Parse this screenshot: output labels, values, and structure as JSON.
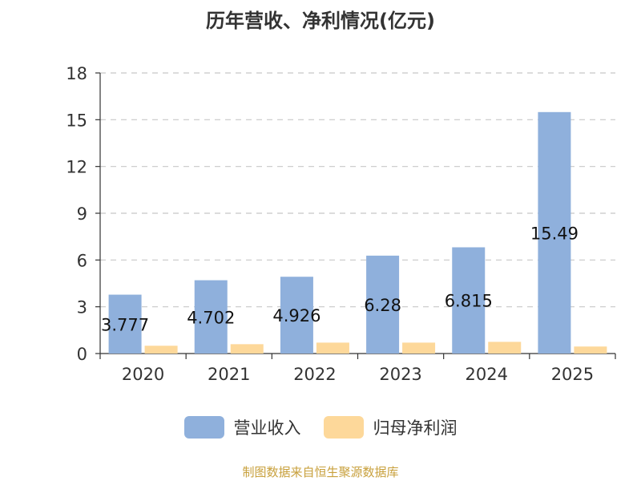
{
  "title": "历年营收、净利情况(亿元)",
  "source": "制图数据来自恒生聚源数据库",
  "colors": {
    "revenue": "#8fb0dc",
    "profit": "#fdd89a"
  },
  "chart_data": {
    "type": "bar",
    "title": "历年营收、净利情况(亿元)",
    "categories": [
      "2020",
      "2021",
      "2022",
      "2023",
      "2024",
      "2025"
    ],
    "series": [
      {
        "name": "营业收入",
        "values": [
          3.777,
          4.702,
          4.926,
          6.28,
          6.815,
          15.49
        ],
        "labels": [
          "3.777",
          "4.702",
          "4.926",
          "6.28",
          "6.815",
          "15.49"
        ]
      },
      {
        "name": "归母净利润",
        "values": [
          0.5,
          0.6,
          0.7,
          0.7,
          0.75,
          0.45
        ]
      }
    ],
    "ylim": [
      0,
      18
    ],
    "yticks": [
      "0",
      "3",
      "6",
      "9",
      "12",
      "15",
      "18"
    ],
    "grid": true,
    "legend": "bottom-center"
  }
}
